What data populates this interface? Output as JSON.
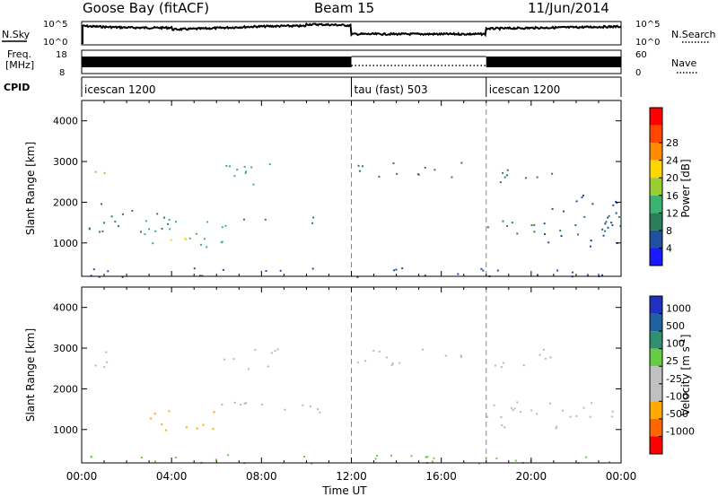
{
  "header": {
    "station": "Goose Bay (fitACF)",
    "beam": "Beam 15",
    "date": "11/Jun/2014"
  },
  "noise_panel": {
    "left_label": "N.Sky",
    "right_label": "N.Search",
    "left_ticks": [
      "10^5",
      "10^0"
    ],
    "right_ticks": [
      "10^5",
      "10^0"
    ]
  },
  "freq_panel": {
    "left_label_line1": "Freq.",
    "left_label_line2": "[MHz]",
    "right_label": "Nave",
    "left_ticks": [
      "18",
      "8"
    ],
    "right_ticks": [
      "60",
      "0"
    ]
  },
  "cpid_panel": {
    "label": "CPID",
    "segments": [
      {
        "name": "icescan 1200",
        "start_hour": 0,
        "end_hour": 12
      },
      {
        "name": "tau (fast) 503",
        "start_hour": 12,
        "end_hour": 18
      },
      {
        "name": "icescan 1200",
        "start_hour": 18,
        "end_hour": 24
      }
    ]
  },
  "colors": {
    "power_scale": [
      "#1a1aff",
      "#2050a0",
      "#2e7d5a",
      "#3cb371",
      "#9acd32",
      "#ffd700",
      "#ff8c00",
      "#ff4500",
      "#ff0000"
    ],
    "velocity_scale": [
      "#2030c0",
      "#2060a0",
      "#2f8f6f",
      "#66cc44",
      "#c0c0c0",
      "#c0c0c0",
      "#ffaa00",
      "#ff6600",
      "#ff0000"
    ],
    "ground_scatter": "#b8b8b8"
  },
  "chart_data": [
    {
      "type": "heatmap",
      "title": "",
      "xlabel": "",
      "ylabel": "Slant Range [km]",
      "xlim": [
        0,
        24
      ],
      "ylim": [
        180,
        4500
      ],
      "yticks": [
        "1000",
        "2000",
        "3000",
        "4000"
      ],
      "colorbar_label": "Power [dB]",
      "colorbar_ticks": [
        "4",
        "8",
        "12",
        "16",
        "20",
        "24",
        "28"
      ],
      "scatter_regions": [
        {
          "x": [
            0.5,
            1.4
          ],
          "y": [
            2400,
            2900
          ],
          "level": 16
        },
        {
          "x": [
            0.3,
            4.0
          ],
          "y": [
            1200,
            2000
          ],
          "level": 8
        },
        {
          "x": [
            2.5,
            6.5
          ],
          "y": [
            900,
            1700
          ],
          "level": 14
        },
        {
          "x": [
            3.5,
            5.0
          ],
          "y": [
            900,
            1200
          ],
          "level": 22
        },
        {
          "x": [
            6.0,
            9.0
          ],
          "y": [
            2400,
            3000
          ],
          "level": 12
        },
        {
          "x": [
            6.5,
            10.5
          ],
          "y": [
            1500,
            1700
          ],
          "level": 8
        },
        {
          "x": [
            12.2,
            17.8
          ],
          "y": [
            2600,
            3000
          ],
          "level": 10
        },
        {
          "x": [
            18.2,
            21.0
          ],
          "y": [
            2500,
            3000
          ],
          "level": 10
        },
        {
          "x": [
            18.0,
            24.0
          ],
          "y": [
            1200,
            1700
          ],
          "level": 8
        },
        {
          "x": [
            20.5,
            24.0
          ],
          "y": [
            900,
            2200
          ],
          "level": 6
        },
        {
          "x": [
            0.0,
            24.0
          ],
          "y": [
            180,
            400
          ],
          "level": 6
        }
      ]
    },
    {
      "type": "heatmap",
      "title": "",
      "xlabel": "Time UT",
      "ylabel": "Slant Range [km]",
      "xlim": [
        0,
        24
      ],
      "ylim": [
        180,
        4500
      ],
      "yticks": [
        "1000",
        "2000",
        "3000",
        "4000"
      ],
      "xticks": [
        "00:00",
        "04:00",
        "08:00",
        "12:00",
        "16:00",
        "20:00",
        "00:00"
      ],
      "colorbar_label": "Velocity [m s^-1]",
      "colorbar_ticks": [
        "1000",
        "500",
        "100",
        "25",
        "-25",
        "-100",
        "-500",
        "-1000"
      ],
      "scatter_regions": [
        {
          "x": [
            0.5,
            1.5
          ],
          "y": [
            2300,
            3000
          ],
          "level": 0
        },
        {
          "x": [
            3.0,
            6.5
          ],
          "y": [
            1000,
            1500
          ],
          "level": -200
        },
        {
          "x": [
            6.0,
            9.0
          ],
          "y": [
            2500,
            3000
          ],
          "level": 0
        },
        {
          "x": [
            5.5,
            12.0
          ],
          "y": [
            1400,
            1700
          ],
          "level": 0
        },
        {
          "x": [
            12.2,
            17.8
          ],
          "y": [
            2600,
            3000
          ],
          "level": 0
        },
        {
          "x": [
            18.2,
            21.0
          ],
          "y": [
            2500,
            3000
          ],
          "level": 0
        },
        {
          "x": [
            18.0,
            24.0
          ],
          "y": [
            1000,
            1700
          ],
          "level": 0
        },
        {
          "x": [
            0.0,
            24.0
          ],
          "y": [
            180,
            400
          ],
          "level": 50
        }
      ]
    }
  ]
}
